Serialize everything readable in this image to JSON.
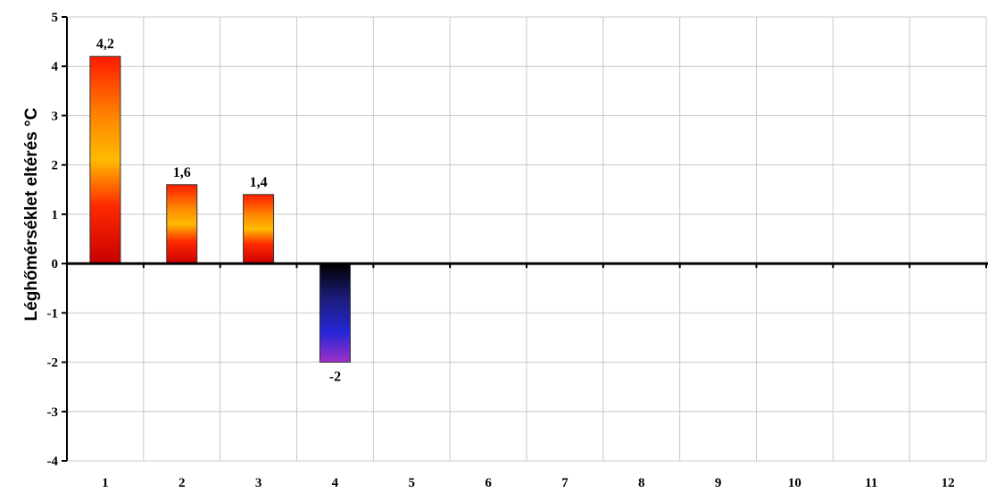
{
  "chart_data": {
    "type": "bar",
    "title": "",
    "xlabel": "",
    "ylabel": "Léghőmérséklet eltérés °C",
    "categories": [
      "1",
      "2",
      "3",
      "4",
      "5",
      "6",
      "7",
      "8",
      "9",
      "10",
      "11",
      "12"
    ],
    "values": [
      4.2,
      1.6,
      1.4,
      -2,
      null,
      null,
      null,
      null,
      null,
      null,
      null,
      null
    ],
    "data_labels": [
      "4,2",
      "1,6",
      "1,4",
      "-2",
      "",
      "",
      "",
      "",
      "",
      "",
      "",
      ""
    ],
    "ylim": [
      -4,
      5
    ],
    "yticks": [
      5,
      4,
      3,
      2,
      1,
      0,
      -1,
      -2,
      -3,
      -4
    ],
    "ytick_labels": [
      "5",
      "4",
      "3",
      "2",
      "1",
      "0",
      "-1",
      "-2",
      "-3",
      "-4"
    ],
    "grid": true,
    "colors": {
      "positive_gradient": [
        "#cc0000",
        "#ff2a00",
        "#ffaa00",
        "#ff3300",
        "#e00000"
      ],
      "negative_gradient": [
        "#000000",
        "#1a1a80",
        "#2a2ad0",
        "#9a30d0"
      ],
      "grid": "#c8c8c8",
      "axis": "#000000"
    }
  }
}
